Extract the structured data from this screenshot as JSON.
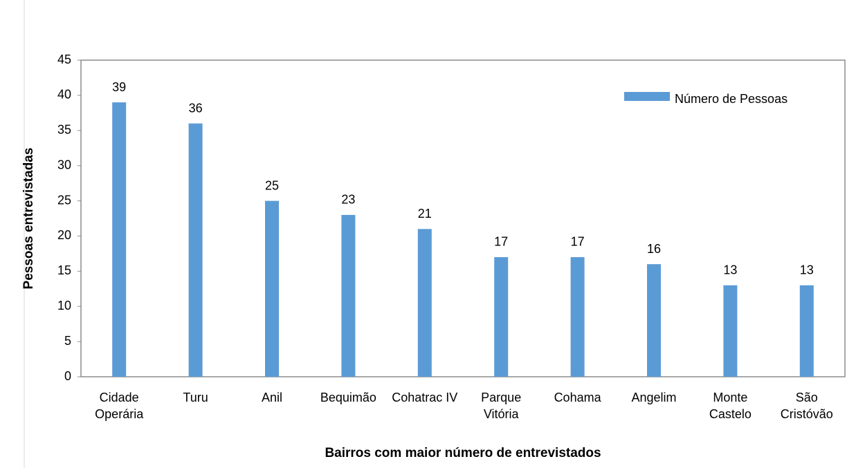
{
  "chart_data": {
    "type": "bar",
    "categories": [
      "Cidade Operária",
      "Turu",
      "Anil",
      "Bequimão",
      "Cohatrac IV",
      "Parque Vitória",
      "Cohama",
      "Angelim",
      "Monte Castelo",
      "São Cristóvão"
    ],
    "series": [
      {
        "name": "Número de Pessoas",
        "color": "#5b9bd5",
        "values": [
          39,
          36,
          25,
          23,
          21,
          17,
          17,
          16,
          13,
          13
        ]
      }
    ],
    "ylim": [
      0,
      45
    ],
    "yticks": [
      0,
      5,
      10,
      15,
      20,
      25,
      30,
      35,
      40,
      45
    ],
    "xlabel": "Bairros com maior número de entrevistados",
    "ylabel": "Pessoas entrevistadas",
    "legend": "upper right"
  }
}
